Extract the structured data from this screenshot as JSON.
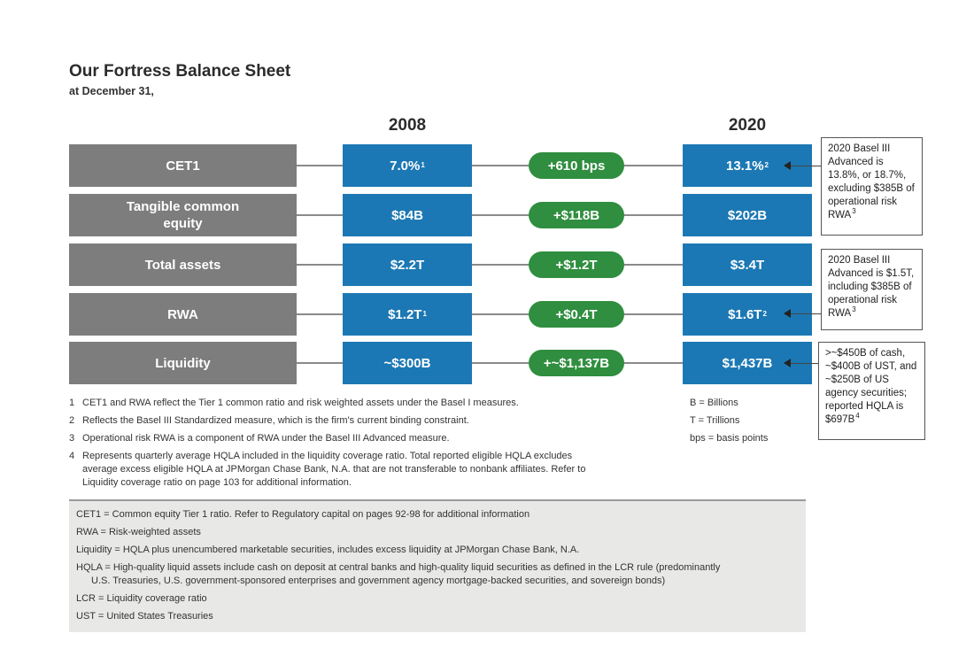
{
  "header": {
    "title": "Our Fortress Balance Sheet",
    "subtitle": "at December 31,"
  },
  "columns": {
    "year_left": "2008",
    "year_right": "2020"
  },
  "rows": [
    {
      "label": "CET1",
      "v2008": "7.0%",
      "v2008_sup": "1",
      "change": "+610 bps",
      "v2020": "13.1%",
      "v2020_sup": "2"
    },
    {
      "label": "Tangible common equity",
      "v2008": "$84B",
      "v2008_sup": "",
      "change": "+$118B",
      "v2020": "$202B",
      "v2020_sup": ""
    },
    {
      "label": "Total assets",
      "v2008": "$2.2T",
      "v2008_sup": "",
      "change": "+$1.2T",
      "v2020": "$3.4T",
      "v2020_sup": ""
    },
    {
      "label": "RWA",
      "v2008": "$1.2T",
      "v2008_sup": "1",
      "change": "+$0.4T",
      "v2020": "$1.6T",
      "v2020_sup": "2"
    },
    {
      "label": "Liquidity",
      "v2008": "~$300B",
      "v2008_sup": "",
      "change": "+~$1,137B",
      "v2020": "$1,437B",
      "v2020_sup": ""
    }
  ],
  "notes": [
    {
      "text": "2020 Basel III Advanced is 13.8%, or 18.7%, excluding $385B of operational risk RWA",
      "sup": "3"
    },
    {
      "text": "2020 Basel III Advanced is $1.5T, including $385B of operational risk RWA",
      "sup": "3"
    },
    {
      "text": ">~$450B of cash, ~$400B of UST, and ~$250B of US agency securities; reported HQLA is $697B",
      "sup": "4"
    }
  ],
  "footnotes": [
    {
      "num": "1",
      "text": "CET1 and RWA reflect the Tier 1 common ratio and risk weighted assets under the Basel I measures."
    },
    {
      "num": "2",
      "text": "Reflects the Basel III Standardized measure, which is the firm's current binding constraint."
    },
    {
      "num": "3",
      "text": "Operational risk RWA is a component of RWA under the Basel III Advanced measure."
    },
    {
      "num": "4",
      "text": "Represents quarterly average HQLA included in the liquidity coverage ratio. Total reported eligible HQLA excludes average excess eligible HQLA at JPMorgan Chase Bank, N.A. that are not transferable to nonbank affiliates. Refer to Liquidity coverage ratio on page 103 for additional information."
    }
  ],
  "legend": [
    "B = Billions",
    "T = Trillions",
    "bps = basis points"
  ],
  "glossary": [
    {
      "text": "CET1 = Common equity Tier 1 ratio. Refer to Regulatory capital on pages 92-98 for additional information",
      "cont": ""
    },
    {
      "text": "RWA = Risk-weighted assets",
      "cont": ""
    },
    {
      "text": "Liquidity = HQLA plus unencumbered marketable securities, includes excess liquidity at JPMorgan Chase Bank, N.A.",
      "cont": ""
    },
    {
      "text": "HQLA = High-quality liquid assets include cash on deposit at central banks and high-quality liquid securities as defined in the LCR rule (predominantly",
      "cont": "U.S. Treasuries, U.S. government-sponsored enterprises and government agency mortgage-backed securities, and sovereign bonds)"
    },
    {
      "text": "LCR = Liquidity coverage ratio",
      "cont": ""
    },
    {
      "text": "UST = United States Treasuries",
      "cont": ""
    }
  ],
  "colors": {
    "label_bg": "#7d7d7d",
    "value_bg": "#1c78b4",
    "change_bg": "#2f8e3f",
    "glossary_bg": "#e8e8e6"
  }
}
